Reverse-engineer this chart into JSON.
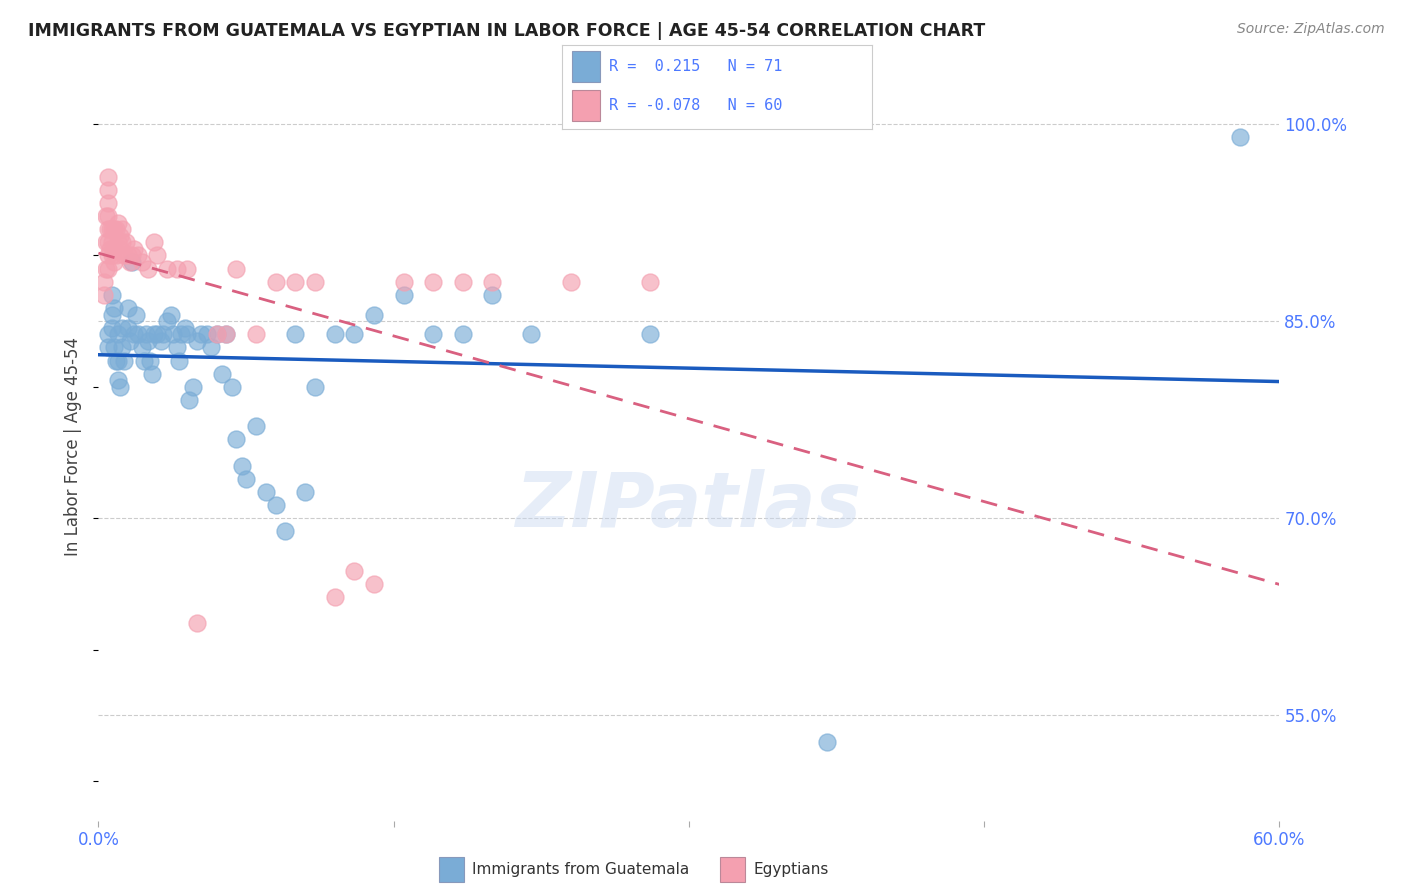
{
  "title": "IMMIGRANTS FROM GUATEMALA VS EGYPTIAN IN LABOR FORCE | AGE 45-54 CORRELATION CHART",
  "source": "Source: ZipAtlas.com",
  "ylabel": "In Labor Force | Age 45-54",
  "xlim": [
    0.0,
    0.6
  ],
  "ylim": [
    0.47,
    1.04
  ],
  "yticks": [
    0.55,
    0.7,
    0.85,
    1.0
  ],
  "ytick_labels": [
    "55.0%",
    "70.0%",
    "85.0%",
    "100.0%"
  ],
  "xticks": [
    0.0,
    0.15,
    0.3,
    0.45,
    0.6
  ],
  "xtick_labels": [
    "0.0%",
    "",
    "",
    "",
    "60.0%"
  ],
  "axis_color": "#4d79ff",
  "legend_R_blue": "0.215",
  "legend_N_blue": "71",
  "legend_R_pink": "-0.078",
  "legend_N_pink": "60",
  "blue_color": "#7aacd6",
  "pink_color": "#f4a0b0",
  "blue_line_color": "#1a5bbf",
  "pink_line_color": "#d96080",
  "watermark": "ZIPatlas",
  "blue_x": [
    0.005,
    0.005,
    0.007,
    0.007,
    0.007,
    0.008,
    0.008,
    0.009,
    0.01,
    0.01,
    0.01,
    0.011,
    0.012,
    0.012,
    0.013,
    0.015,
    0.015,
    0.016,
    0.017,
    0.018,
    0.019,
    0.02,
    0.022,
    0.023,
    0.024,
    0.025,
    0.026,
    0.027,
    0.028,
    0.03,
    0.032,
    0.033,
    0.035,
    0.037,
    0.038,
    0.04,
    0.041,
    0.042,
    0.044,
    0.045,
    0.046,
    0.048,
    0.05,
    0.052,
    0.055,
    0.057,
    0.06,
    0.063,
    0.065,
    0.068,
    0.07,
    0.073,
    0.075,
    0.08,
    0.085,
    0.09,
    0.095,
    0.1,
    0.105,
    0.11,
    0.12,
    0.13,
    0.14,
    0.155,
    0.17,
    0.185,
    0.2,
    0.22,
    0.28,
    0.37,
    0.58
  ],
  "blue_y": [
    0.84,
    0.83,
    0.87,
    0.855,
    0.845,
    0.86,
    0.83,
    0.82,
    0.84,
    0.82,
    0.805,
    0.8,
    0.845,
    0.83,
    0.82,
    0.86,
    0.845,
    0.835,
    0.895,
    0.84,
    0.855,
    0.84,
    0.83,
    0.82,
    0.84,
    0.835,
    0.82,
    0.81,
    0.84,
    0.84,
    0.835,
    0.84,
    0.85,
    0.855,
    0.84,
    0.83,
    0.82,
    0.84,
    0.845,
    0.84,
    0.79,
    0.8,
    0.835,
    0.84,
    0.84,
    0.83,
    0.84,
    0.81,
    0.84,
    0.8,
    0.76,
    0.74,
    0.73,
    0.77,
    0.72,
    0.71,
    0.69,
    0.84,
    0.72,
    0.8,
    0.84,
    0.84,
    0.855,
    0.87,
    0.84,
    0.84,
    0.87,
    0.84,
    0.84,
    0.53,
    0.99
  ],
  "pink_x": [
    0.003,
    0.003,
    0.004,
    0.004,
    0.004,
    0.005,
    0.005,
    0.005,
    0.005,
    0.005,
    0.005,
    0.005,
    0.005,
    0.006,
    0.006,
    0.007,
    0.007,
    0.007,
    0.008,
    0.008,
    0.008,
    0.009,
    0.009,
    0.01,
    0.01,
    0.011,
    0.011,
    0.012,
    0.012,
    0.013,
    0.014,
    0.015,
    0.016,
    0.017,
    0.018,
    0.02,
    0.022,
    0.025,
    0.028,
    0.03,
    0.035,
    0.04,
    0.045,
    0.05,
    0.06,
    0.065,
    0.07,
    0.08,
    0.09,
    0.1,
    0.11,
    0.12,
    0.13,
    0.14,
    0.155,
    0.17,
    0.185,
    0.2,
    0.24,
    0.28
  ],
  "pink_y": [
    0.88,
    0.87,
    0.93,
    0.91,
    0.89,
    0.96,
    0.95,
    0.94,
    0.93,
    0.92,
    0.91,
    0.9,
    0.89,
    0.92,
    0.905,
    0.92,
    0.91,
    0.9,
    0.92,
    0.905,
    0.895,
    0.92,
    0.9,
    0.925,
    0.91,
    0.915,
    0.905,
    0.92,
    0.91,
    0.9,
    0.91,
    0.9,
    0.895,
    0.9,
    0.905,
    0.9,
    0.895,
    0.89,
    0.91,
    0.9,
    0.89,
    0.89,
    0.89,
    0.62,
    0.84,
    0.84,
    0.89,
    0.84,
    0.88,
    0.88,
    0.88,
    0.64,
    0.66,
    0.65,
    0.88,
    0.88,
    0.88,
    0.88,
    0.88,
    0.88
  ]
}
